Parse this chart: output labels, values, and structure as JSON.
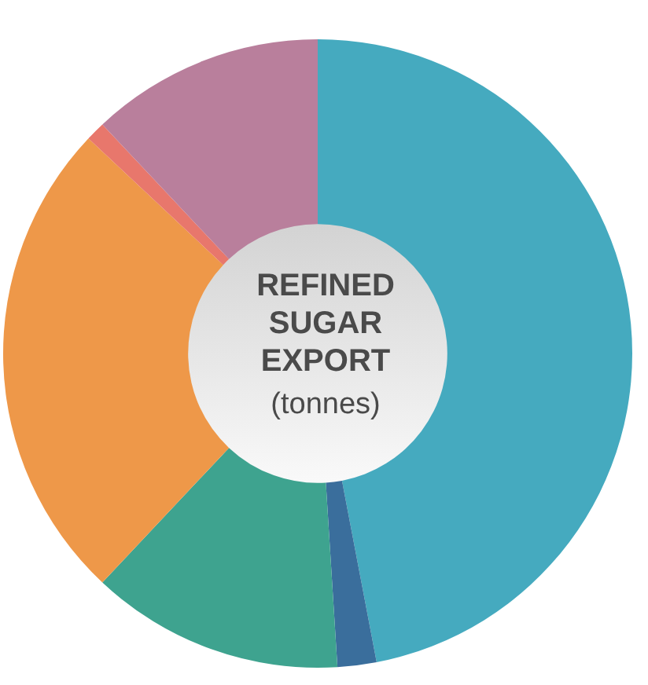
{
  "chart_data": {
    "type": "donut",
    "title": "REFINED SUGAR EXPORT",
    "subtitle": "(tonnes)",
    "categories": [
      null,
      null,
      null,
      null,
      null,
      null
    ],
    "values": [
      47,
      2,
      13,
      25,
      1,
      12
    ],
    "colors": [
      "#45aabf",
      "#3a6e9c",
      "#3ea38f",
      "#ee9849",
      "#e8776c",
      "#b97f9c"
    ]
  }
}
